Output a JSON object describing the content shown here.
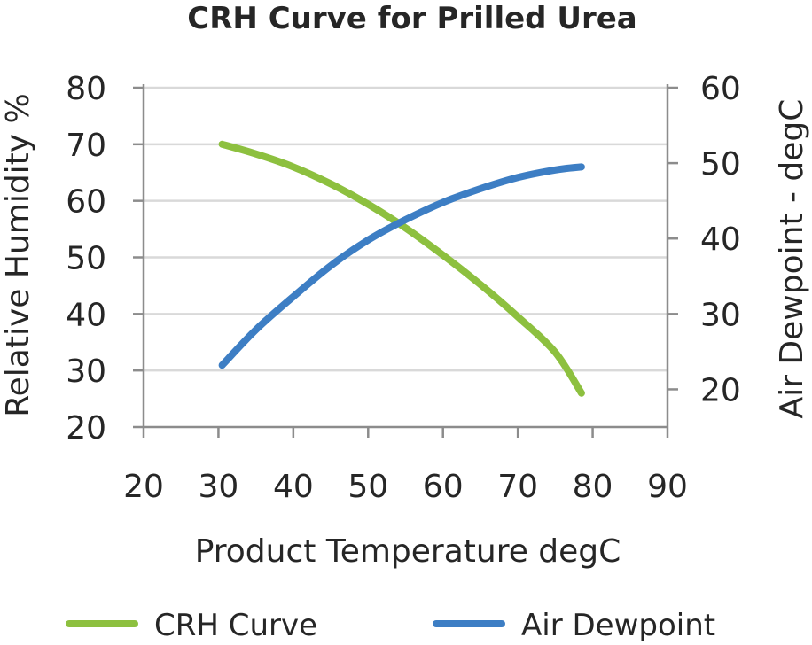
{
  "chart_data": {
    "type": "line",
    "title": "CRH Curve for Prilled Urea",
    "xlabel": "Product Temperature degC",
    "ylabel": "Relative Humidity %",
    "y2label": "Air Dewpoint - degC",
    "xlim": [
      20,
      90
    ],
    "ylim": [
      20,
      80
    ],
    "y2lim": [
      15,
      60
    ],
    "x_ticks": [
      "20",
      "30",
      "40",
      "50",
      "60",
      "70",
      "80",
      "90"
    ],
    "y_ticks": [
      "20",
      "30",
      "40",
      "50",
      "60",
      "70",
      "80"
    ],
    "y2_ticks": [
      "20",
      "30",
      "40",
      "50",
      "60"
    ],
    "grid": true,
    "legend_position": "bottom",
    "x": [
      30.5,
      35,
      40,
      45,
      50,
      55,
      60,
      65,
      70,
      75,
      78.5
    ],
    "series": [
      {
        "name": "CRH Curve",
        "axis": "left",
        "color": "#8dc03f",
        "values": [
          70,
          68.3,
          66,
          63,
          59.4,
          55.2,
          50.4,
          45.2,
          39.5,
          33.2,
          26
        ]
      },
      {
        "name": "Air Dewpoint",
        "axis": "right",
        "color": "#3d7ec4",
        "values": [
          23.2,
          27.9,
          32.3,
          36.4,
          39.8,
          42.5,
          44.8,
          46.6,
          48.1,
          49.1,
          49.5
        ]
      }
    ]
  }
}
